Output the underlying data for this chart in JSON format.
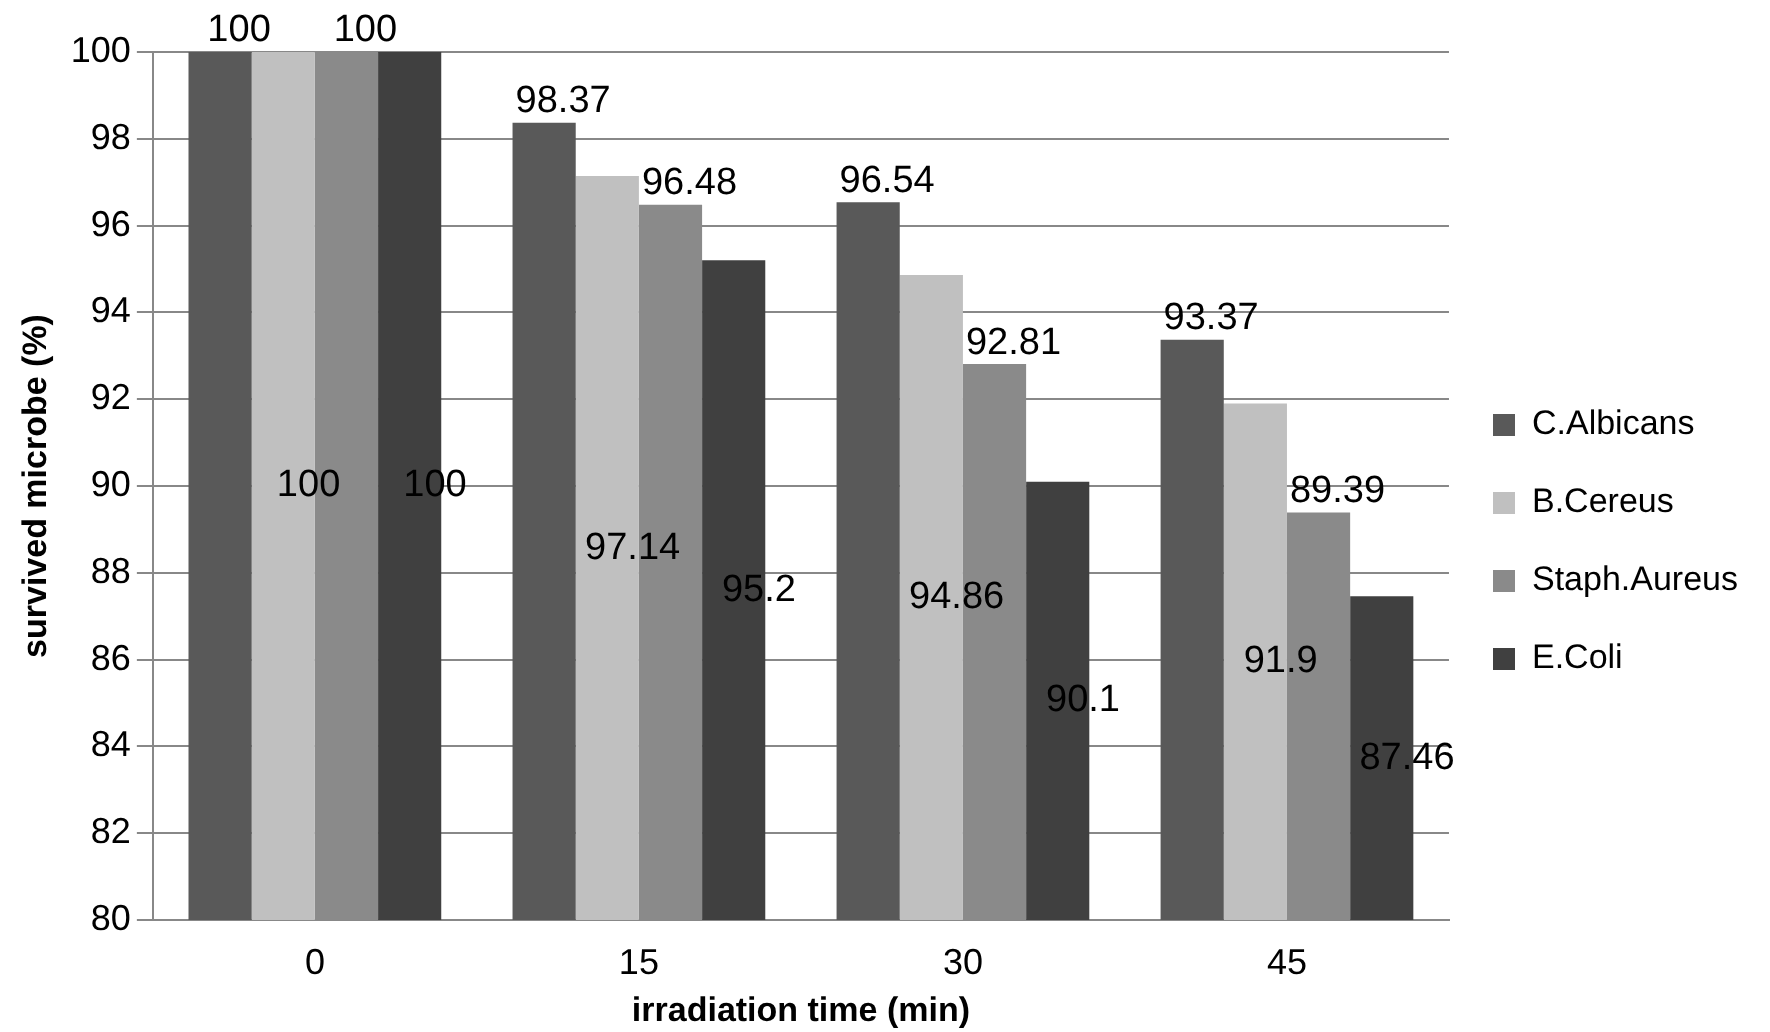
{
  "chart_data": {
    "type": "bar",
    "xlabel": "irradiation time (min)",
    "ylabel": "survived microbe (%)",
    "categories": [
      "0",
      "15",
      "30",
      "45"
    ],
    "series": [
      {
        "name": "C.Albicans",
        "color": "#595959",
        "values": [
          100,
          98.37,
          96.54,
          93.37
        ]
      },
      {
        "name": "B.Cereus",
        "color": "#c0c0c0",
        "values": [
          100,
          97.14,
          94.86,
          91.9
        ]
      },
      {
        "name": "Staph.Aureus",
        "color": "#8a8a8a",
        "values": [
          100,
          96.48,
          92.81,
          89.39
        ]
      },
      {
        "name": "E.Coli",
        "color": "#404040",
        "values": [
          100,
          95.2,
          90.1,
          87.46
        ]
      }
    ],
    "ylim": [
      80,
      100
    ],
    "yticks": [
      80,
      82,
      84,
      86,
      88,
      90,
      92,
      94,
      96,
      98,
      100
    ],
    "grid": "y",
    "legend": "right",
    "data_labels": true
  }
}
